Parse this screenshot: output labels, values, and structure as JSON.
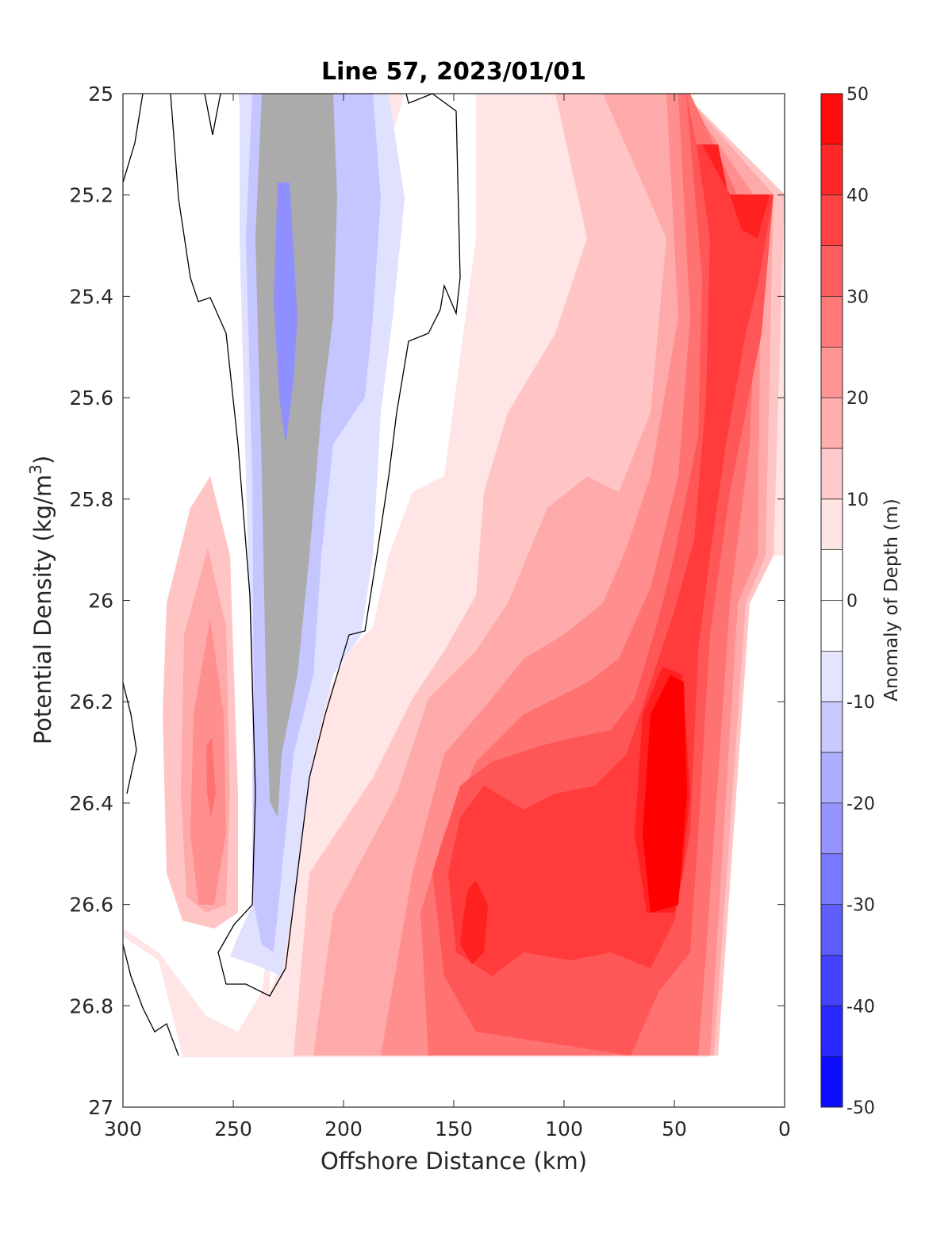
{
  "chart_data": {
    "type": "heatmap",
    "subtype": "filled-contour",
    "title": "Line 57, 2023/01/01",
    "xlabel": "Offshore Distance (km)",
    "ylabel": "Potential Density (kg/m3)",
    "ylabel_parts": {
      "main": "Potential Density (kg/m",
      "sup": "3",
      "end": ")"
    },
    "xlim": [
      300,
      0
    ],
    "ylim": [
      25,
      27
    ],
    "x_reversed": true,
    "y_reversed": true,
    "xticks": [
      300,
      250,
      200,
      150,
      100,
      50,
      0
    ],
    "xtick_labels": [
      "300",
      "250",
      "200",
      "150",
      "100",
      "50",
      "0"
    ],
    "yticks": [
      25,
      25.2,
      25.4,
      25.6,
      25.8,
      26,
      26.2,
      26.4,
      26.6,
      26.8,
      27
    ],
    "ytick_labels": [
      "25",
      "25.2",
      "25.4",
      "25.6",
      "25.8",
      "26",
      "26.2",
      "26.4",
      "26.6",
      "26.8",
      "27"
    ],
    "colorbar": {
      "label": "Anomaly of Depth (m)",
      "range": [
        -50,
        50
      ],
      "step": 5,
      "ticks": [
        -50,
        -40,
        -30,
        -20,
        -10,
        0,
        10,
        20,
        30,
        40,
        50
      ],
      "tick_labels": [
        "-50",
        "-40",
        "-30",
        "-20",
        "-10",
        "0",
        "10",
        "20",
        "30",
        "40",
        "50"
      ],
      "colormap": "blue-white-red",
      "neg_color": "#0000ff",
      "pos_color": "#ff0000",
      "mid_color": "#ffffff"
    },
    "zero_contour_color": "#000000",
    "grid": false,
    "features": [
      {
        "kind": "negative anomaly",
        "center_x": 225,
        "center_y": 25.45,
        "min_value": -20
      },
      {
        "kind": "positive anomaly",
        "center_x": 262,
        "center_y": 26.35,
        "max_value": 25
      },
      {
        "kind": "positive anomaly",
        "center_x": 140,
        "center_y": 26.6,
        "max_value": 40
      },
      {
        "kind": "positive anomaly",
        "center_x": 55,
        "center_y": 26.35,
        "max_value": 45
      },
      {
        "kind": "positive anomaly",
        "center_x": 20,
        "center_y": 25.25,
        "max_value": 40
      }
    ]
  }
}
